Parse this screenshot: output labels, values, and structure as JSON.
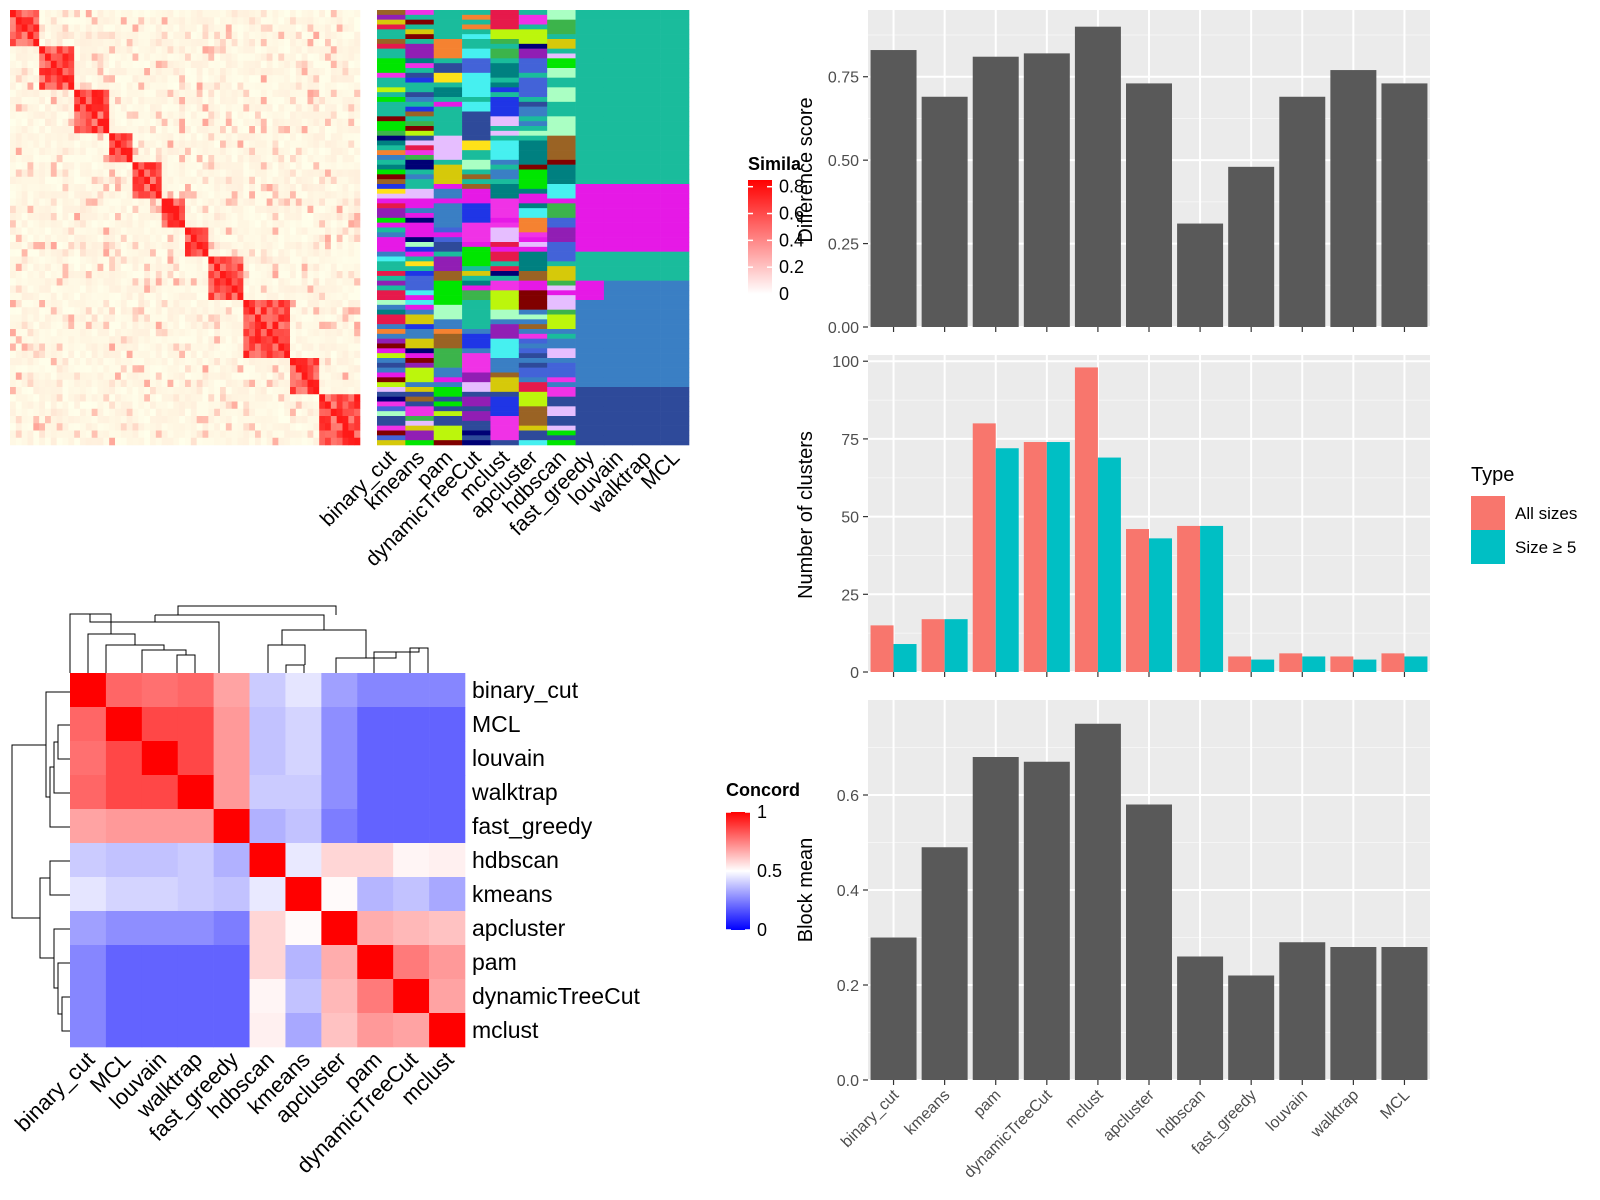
{
  "colors": {
    "panel_bg": "#EBEBEB",
    "bar_dark": "#595959",
    "all_sizes": "#F8766D",
    "size5": "#00BFC4",
    "heat_low": "#0000FF",
    "heat_mid": "#FFFFFF",
    "heat_high": "#FF0000"
  },
  "similarity_panel": {
    "legend_title": "Simila",
    "legend_ticks": [
      "0.8",
      "0.6",
      "0.4",
      "0.2",
      "0"
    ],
    "method_labels": [
      "binary_cut",
      "kmeans",
      "pam",
      "dynamicTreeCut",
      "mclust",
      "apcluster",
      "hdbscan",
      "fast_greedy",
      "louvain",
      "walktrap",
      "MCL"
    ],
    "block_fractions": [
      0,
      0.07,
      0.17,
      0.27,
      0.35,
      0.42,
      0.5,
      0.56,
      0.66,
      0.8,
      0.87,
      1
    ]
  },
  "concordance_panel": {
    "legend_title": "Concord",
    "legend_ticks": [
      "1",
      "0.5",
      "0"
    ],
    "labels": [
      "binary_cut",
      "MCL",
      "louvain",
      "walktrap",
      "fast_greedy",
      "hdbscan",
      "kmeans",
      "apcluster",
      "pam",
      "dynamicTreeCut",
      "mclust"
    ]
  },
  "chart_data": [
    {
      "type": "heatmap",
      "title": "",
      "row_labels": [
        "binary_cut",
        "MCL",
        "louvain",
        "walktrap",
        "fast_greedy",
        "hdbscan",
        "kmeans",
        "apcluster",
        "pam",
        "dynamicTreeCut",
        "mclust"
      ],
      "col_labels": [
        "binary_cut",
        "MCL",
        "louvain",
        "walktrap",
        "fast_greedy",
        "hdbscan",
        "kmeans",
        "apcluster",
        "pam",
        "dynamicTreeCut",
        "mclust"
      ],
      "values": [
        [
          1.0,
          0.8,
          0.78,
          0.8,
          0.68,
          0.38,
          0.44,
          0.28,
          0.22,
          0.22,
          0.22
        ],
        [
          0.8,
          1.0,
          0.86,
          0.86,
          0.7,
          0.36,
          0.4,
          0.24,
          0.14,
          0.14,
          0.14
        ],
        [
          0.78,
          0.86,
          1.0,
          0.86,
          0.7,
          0.36,
          0.4,
          0.24,
          0.14,
          0.14,
          0.14
        ],
        [
          0.8,
          0.86,
          0.86,
          1.0,
          0.7,
          0.38,
          0.38,
          0.24,
          0.14,
          0.14,
          0.14
        ],
        [
          0.68,
          0.7,
          0.7,
          0.7,
          1.0,
          0.32,
          0.36,
          0.2,
          0.14,
          0.14,
          0.14
        ],
        [
          0.38,
          0.36,
          0.36,
          0.38,
          0.32,
          1.0,
          0.45,
          0.58,
          0.58,
          0.52,
          0.53
        ],
        [
          0.44,
          0.4,
          0.4,
          0.38,
          0.36,
          0.45,
          1.0,
          0.51,
          0.33,
          0.36,
          0.3
        ],
        [
          0.28,
          0.24,
          0.24,
          0.24,
          0.2,
          0.58,
          0.51,
          1.0,
          0.66,
          0.64,
          0.62
        ],
        [
          0.22,
          0.14,
          0.14,
          0.14,
          0.14,
          0.58,
          0.33,
          0.66,
          1.0,
          0.76,
          0.7
        ],
        [
          0.22,
          0.14,
          0.14,
          0.14,
          0.14,
          0.52,
          0.36,
          0.64,
          0.76,
          1.0,
          0.68
        ],
        [
          0.22,
          0.14,
          0.14,
          0.14,
          0.14,
          0.53,
          0.3,
          0.62,
          0.7,
          0.68,
          1.0
        ]
      ],
      "legend": "right",
      "colorbar_range": [
        0,
        1
      ]
    },
    {
      "type": "bar",
      "categories": [
        "binary_cut",
        "kmeans",
        "pam",
        "dynamicTreeCut",
        "mclust",
        "apcluster",
        "hdbscan",
        "fast_greedy",
        "louvain",
        "walktrap",
        "MCL"
      ],
      "values": [
        0.83,
        0.69,
        0.81,
        0.82,
        0.9,
        0.73,
        0.31,
        0.48,
        0.69,
        0.77,
        0.73
      ],
      "xlabel": "",
      "ylabel": "Difference score",
      "ylim": [
        0,
        0.95
      ],
      "yticks": [
        0.0,
        0.25,
        0.5,
        0.75
      ],
      "ytick_labels": [
        "0.00",
        "0.25",
        "0.50",
        "0.75"
      ],
      "grid": true
    },
    {
      "type": "bar",
      "categories": [
        "binary_cut",
        "kmeans",
        "pam",
        "dynamicTreeCut",
        "mclust",
        "apcluster",
        "hdbscan",
        "fast_greedy",
        "louvain",
        "walktrap",
        "MCL"
      ],
      "series": [
        {
          "name": "All sizes",
          "values": [
            15,
            17,
            80,
            74,
            98,
            46,
            47,
            5,
            6,
            5,
            6
          ]
        },
        {
          "name": "Size ≥ 5",
          "values": [
            9,
            17,
            72,
            74,
            69,
            43,
            47,
            4,
            5,
            4,
            5
          ]
        }
      ],
      "xlabel": "",
      "ylabel": "Number of clusters",
      "ylim": [
        0,
        102
      ],
      "yticks": [
        0,
        25,
        50,
        75,
        100
      ],
      "ytick_labels": [
        "0",
        "25",
        "50",
        "75",
        "100"
      ],
      "legend_title": "Type",
      "legend": "right",
      "grid": true
    },
    {
      "type": "bar",
      "categories": [
        "binary_cut",
        "kmeans",
        "pam",
        "dynamicTreeCut",
        "mclust",
        "apcluster",
        "hdbscan",
        "fast_greedy",
        "louvain",
        "walktrap",
        "MCL"
      ],
      "values": [
        0.3,
        0.49,
        0.68,
        0.67,
        0.75,
        0.58,
        0.26,
        0.22,
        0.29,
        0.28,
        0.28
      ],
      "xlabel": "",
      "ylabel": "Block mean",
      "ylim": [
        0,
        0.8
      ],
      "yticks": [
        0.0,
        0.2,
        0.4,
        0.6
      ],
      "ytick_labels": [
        "0.0",
        "0.2",
        "0.4",
        "0.6"
      ],
      "grid": true
    }
  ]
}
